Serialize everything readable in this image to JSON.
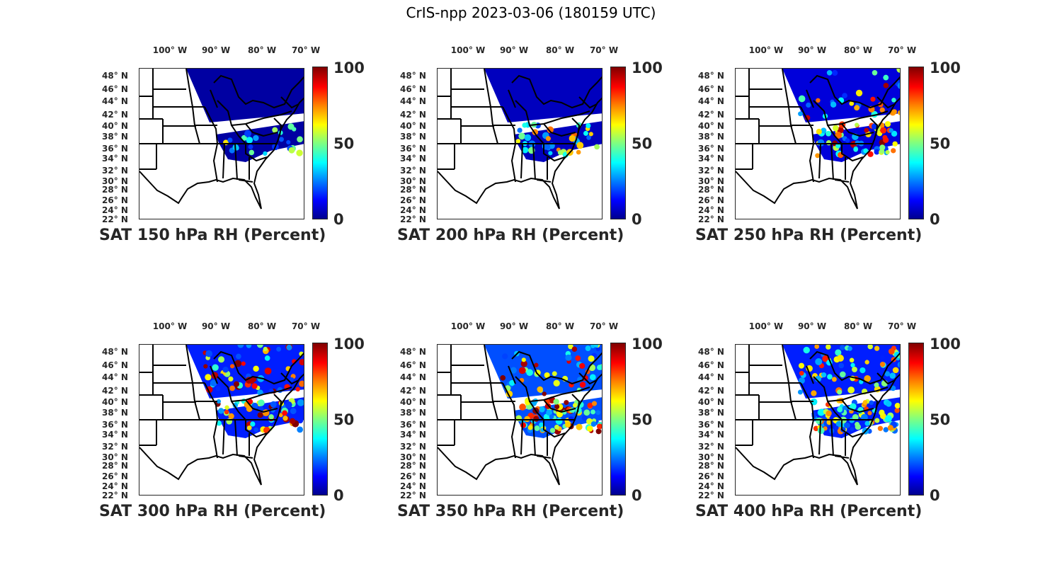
{
  "figure_title": "CrIS-npp 2023-03-06 (180159 UTC)",
  "lon_ticks": [
    "100° W",
    "90° W",
    "80° W",
    "70° W"
  ],
  "lat_ticks": [
    "48° N",
    "46° N",
    "44° N",
    "42° N",
    "40° N",
    "38° N",
    "36° N",
    "34° N",
    "32° N",
    "30° N",
    "28° N",
    "26° N",
    "24° N",
    "22° N"
  ],
  "colorbar": {
    "ticks": [
      "100",
      "50",
      "0"
    ],
    "range": [
      0,
      100
    ],
    "colormap": "jet"
  },
  "panels": [
    {
      "title": "SAT 150 hPa RH (Percent)"
    },
    {
      "title": "SAT 200 hPa RH (Percent)"
    },
    {
      "title": "SAT 250 hPa RH (Percent)"
    },
    {
      "title": "SAT 300 hPa RH (Percent)"
    },
    {
      "title": "SAT 350 hPa RH (Percent)"
    },
    {
      "title": "SAT 400 hPa RH (Percent)"
    }
  ]
}
